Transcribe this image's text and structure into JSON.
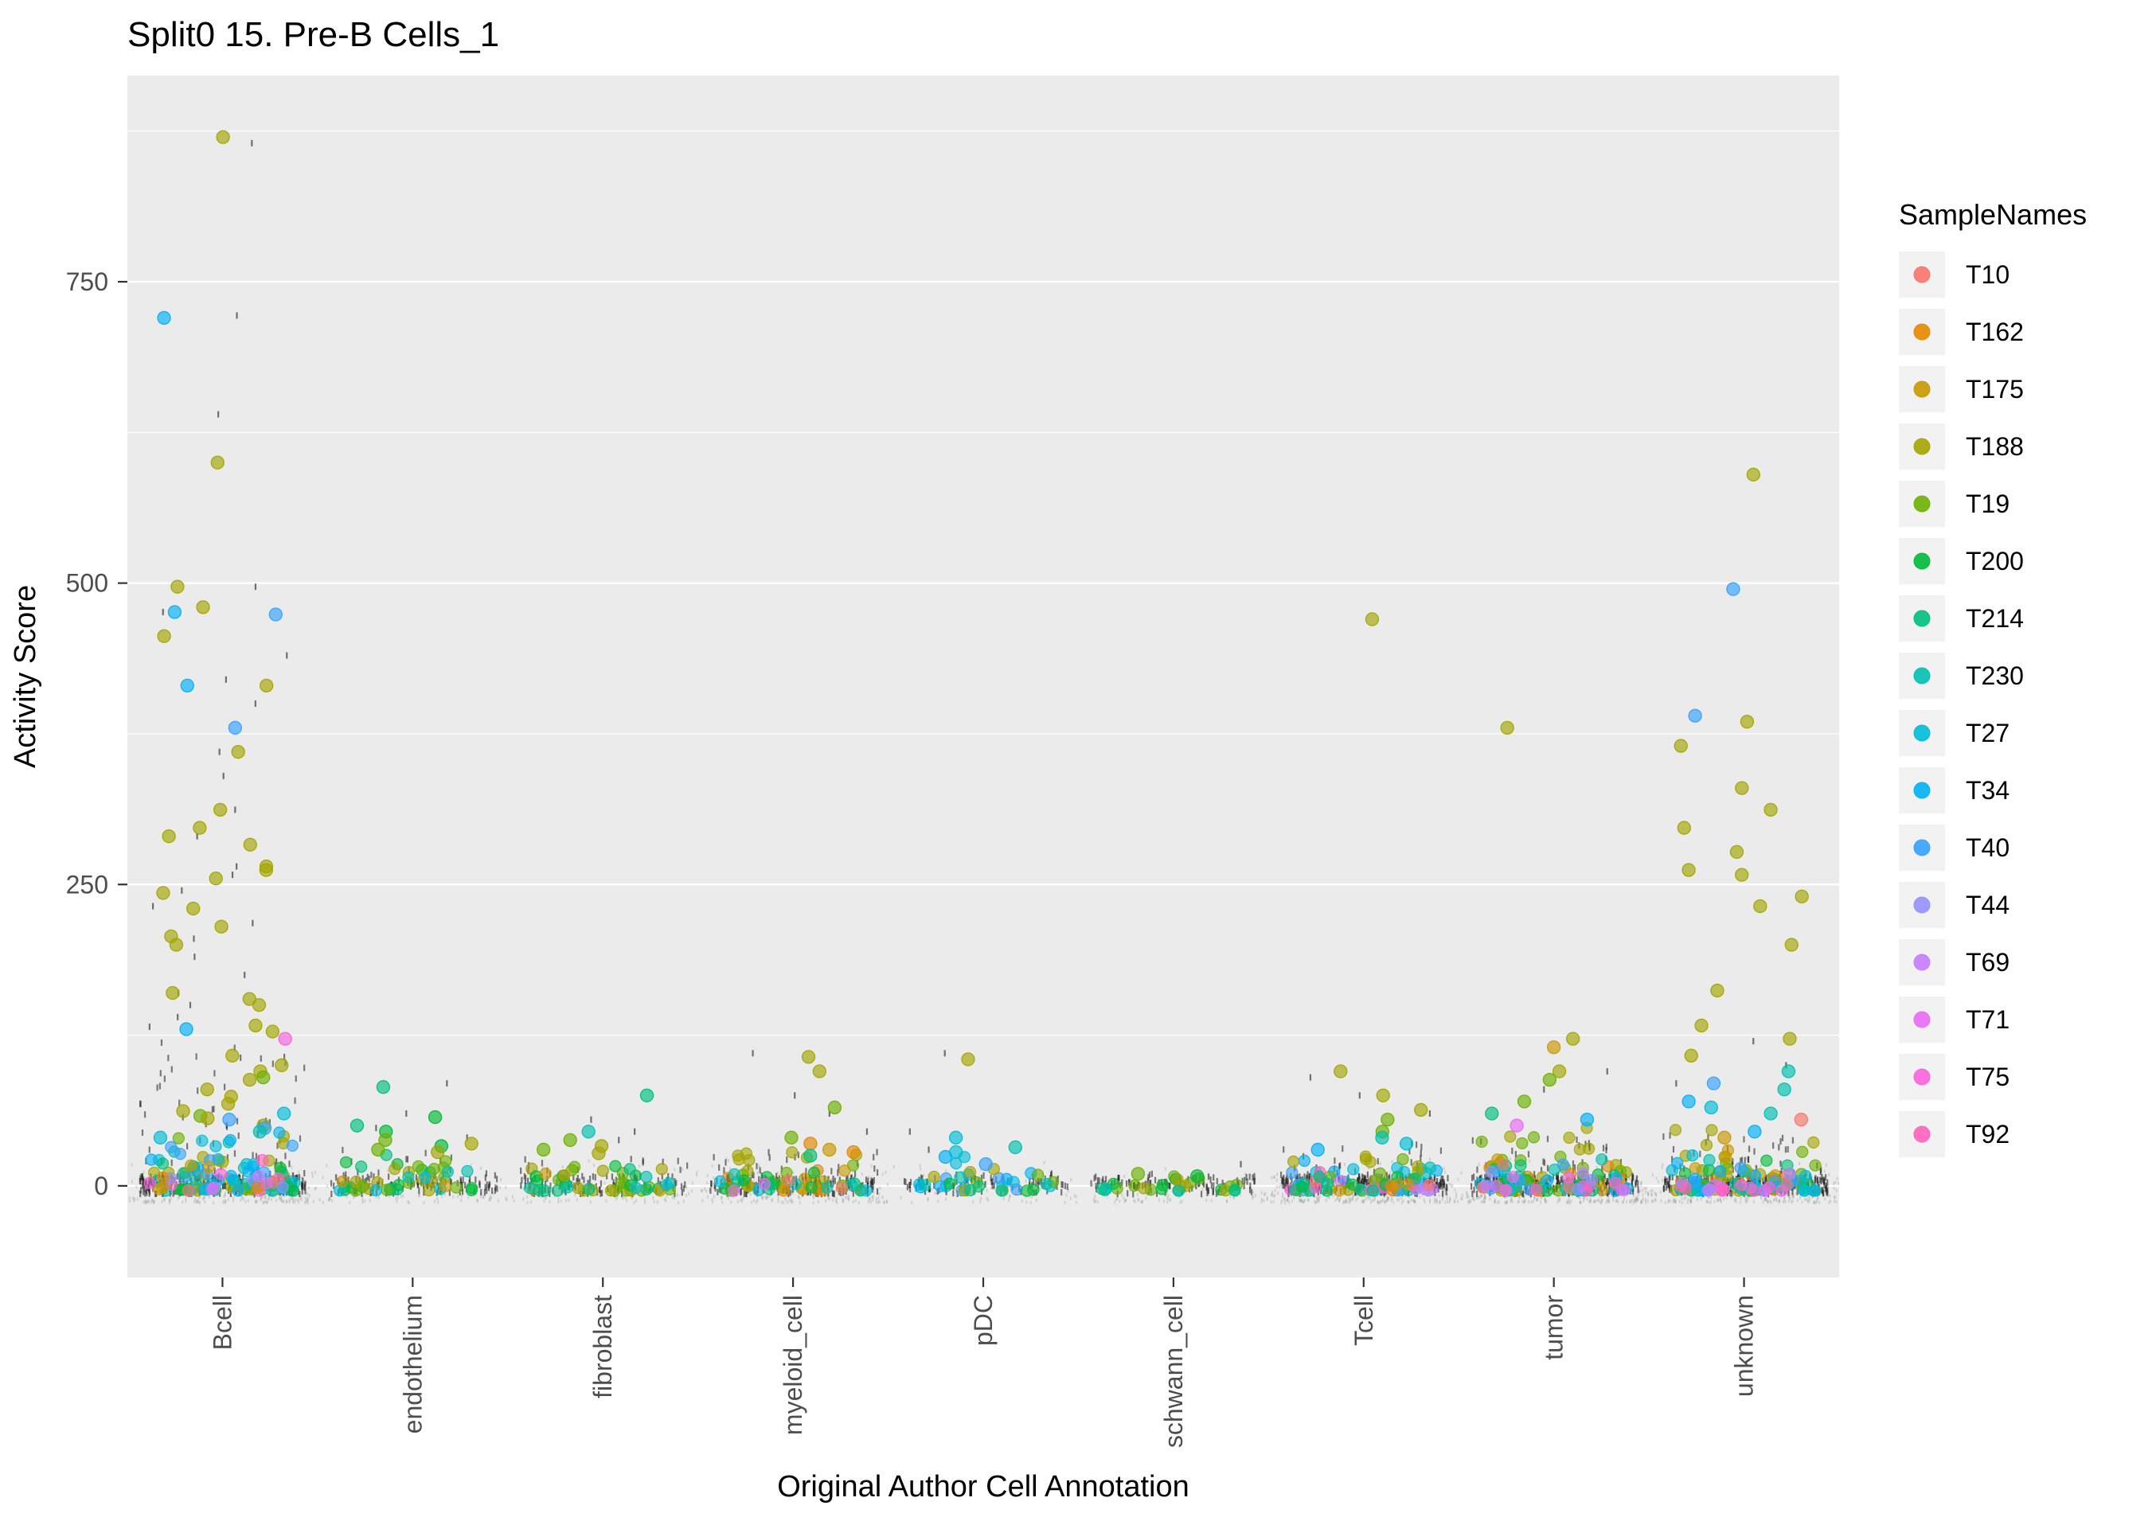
{
  "page": {
    "title": "Split0 15. Pre-B Cells_1"
  },
  "chart_data": {
    "type": "scatter",
    "variant": "jitter-strip",
    "title": "Split0 15. Pre-B Cells_1",
    "xlabel": "Original Author Cell Annotation",
    "ylabel": "Activity Score",
    "ylim": [
      -76,
      921
    ],
    "y_ticks": [
      0,
      250,
      500,
      750
    ],
    "y_minor_ticks": [
      125,
      375,
      625,
      875
    ],
    "grid": true,
    "panel_bg": "#EBEBEB",
    "grid_color": "#FFFFFF",
    "tick_color": "#333333",
    "categories": [
      "Bcell",
      "endothelium",
      "fibroblast",
      "myeloid_cell",
      "pDC",
      "schwann_cell",
      "Tcell",
      "tumor",
      "unknown"
    ],
    "legend": {
      "title": "SampleNames",
      "position": "right",
      "key_bg": "#F2F2F2",
      "entries": [
        {
          "label": "T10",
          "color": "#F8766D"
        },
        {
          "label": "T162",
          "color": "#E58700"
        },
        {
          "label": "T175",
          "color": "#C99800"
        },
        {
          "label": "T188",
          "color": "#A3A500"
        },
        {
          "label": "T19",
          "color": "#6BB100"
        },
        {
          "label": "T200",
          "color": "#00BA38"
        },
        {
          "label": "T214",
          "color": "#00BF7D"
        },
        {
          "label": "T230",
          "color": "#00C0AF"
        },
        {
          "label": "T27",
          "color": "#00BCD8"
        },
        {
          "label": "T34",
          "color": "#00B0F6"
        },
        {
          "label": "T40",
          "color": "#35A2FF"
        },
        {
          "label": "T44",
          "color": "#9590FF"
        },
        {
          "label": "T69",
          "color": "#C77CFF"
        },
        {
          "label": "T71",
          "color": "#E76BF3"
        },
        {
          "label": "T75",
          "color": "#FA62DB"
        },
        {
          "label": "T92",
          "color": "#FF62BC"
        }
      ]
    },
    "outliers": {
      "Bcell": [
        [
          "T188",
          870
        ],
        [
          "T34",
          720
        ],
        [
          "T188",
          600
        ],
        [
          "T188",
          497
        ],
        [
          "T188",
          480
        ],
        [
          "T34",
          476
        ],
        [
          "T40",
          474
        ],
        [
          "T188",
          456
        ],
        [
          "T34",
          415
        ],
        [
          "T188",
          415
        ],
        [
          "T40",
          380
        ],
        [
          "T188",
          360
        ],
        [
          "T188",
          312
        ],
        [
          "T188",
          297
        ],
        [
          "T188",
          290
        ],
        [
          "T188",
          283
        ],
        [
          "T188",
          265
        ],
        [
          "T188",
          262
        ],
        [
          "T188",
          255
        ],
        [
          "T188",
          243
        ],
        [
          "T188",
          230
        ],
        [
          "T188",
          215
        ],
        [
          "T188",
          207
        ],
        [
          "T188",
          200
        ],
        [
          "T188",
          160
        ],
        [
          "T188",
          155
        ],
        [
          "T188",
          150
        ],
        [
          "T188",
          133
        ],
        [
          "T34",
          130
        ],
        [
          "T188",
          128
        ],
        [
          "T75",
          122
        ],
        [
          "T188",
          108
        ],
        [
          "T188",
          100
        ],
        [
          "T188",
          95
        ],
        [
          "T19",
          90
        ],
        [
          "T188",
          88
        ],
        [
          "T188",
          80
        ],
        [
          "T188",
          74
        ],
        [
          "T188",
          68
        ],
        [
          "T188",
          62
        ],
        [
          "T27",
          60
        ],
        [
          "T19",
          58
        ],
        [
          "T188",
          56
        ],
        [
          "T40",
          55
        ],
        [
          "T188",
          50
        ],
        [
          "T40",
          48
        ],
        [
          "T230",
          45
        ],
        [
          "T27",
          40
        ]
      ],
      "endothelium": [
        [
          "T214",
          82
        ],
        [
          "T200",
          57
        ],
        [
          "T214",
          50
        ],
        [
          "T200",
          45
        ],
        [
          "T19",
          38
        ],
        [
          "T188",
          35
        ],
        [
          "T200",
          33
        ],
        [
          "T19",
          30
        ],
        [
          "T188",
          28
        ]
      ],
      "fibroblast": [
        [
          "T214",
          75
        ],
        [
          "T230",
          45
        ],
        [
          "T19",
          38
        ],
        [
          "T188",
          33
        ],
        [
          "T19",
          30
        ],
        [
          "T188",
          27
        ]
      ],
      "myeloid_cell": [
        [
          "T188",
          107
        ],
        [
          "T188",
          95
        ],
        [
          "T19",
          65
        ],
        [
          "T19",
          40
        ],
        [
          "T162",
          35
        ],
        [
          "T175",
          30
        ],
        [
          "T162",
          28
        ],
        [
          "T214",
          25
        ]
      ],
      "pDC": [
        [
          "T188",
          105
        ],
        [
          "T27",
          40
        ],
        [
          "T230",
          32
        ],
        [
          "T27",
          28
        ],
        [
          "T34",
          24
        ],
        [
          "T40",
          18
        ]
      ],
      "schwann_cell": [
        [
          "T19",
          10
        ],
        [
          "T200",
          8
        ]
      ],
      "Tcell": [
        [
          "T188",
          470
        ],
        [
          "T188",
          95
        ],
        [
          "T188",
          75
        ],
        [
          "T188",
          63
        ],
        [
          "T19",
          55
        ],
        [
          "T19",
          45
        ],
        [
          "T230",
          40
        ],
        [
          "T27",
          35
        ],
        [
          "T34",
          30
        ]
      ],
      "tumor": [
        [
          "T188",
          380
        ],
        [
          "T188",
          122
        ],
        [
          "T175",
          115
        ],
        [
          "T188",
          95
        ],
        [
          "T19",
          88
        ],
        [
          "T19",
          70
        ],
        [
          "T214",
          60
        ],
        [
          "T34",
          55
        ],
        [
          "T71",
          50
        ]
      ],
      "unknown": [
        [
          "T188",
          590
        ],
        [
          "T40",
          495
        ],
        [
          "T40",
          390
        ],
        [
          "T188",
          385
        ],
        [
          "T188",
          365
        ],
        [
          "T188",
          330
        ],
        [
          "T188",
          312
        ],
        [
          "T188",
          297
        ],
        [
          "T188",
          277
        ],
        [
          "T188",
          262
        ],
        [
          "T188",
          258
        ],
        [
          "T188",
          240
        ],
        [
          "T188",
          232
        ],
        [
          "T188",
          200
        ],
        [
          "T188",
          162
        ],
        [
          "T188",
          133
        ],
        [
          "T188",
          122
        ],
        [
          "T188",
          108
        ],
        [
          "T230",
          95
        ],
        [
          "T40",
          85
        ],
        [
          "T230",
          80
        ],
        [
          "T34",
          70
        ],
        [
          "T27",
          65
        ],
        [
          "T230",
          60
        ],
        [
          "T10",
          55
        ],
        [
          "T34",
          45
        ],
        [
          "T175",
          40
        ]
      ]
    },
    "clusters": {
      "Bcell": [
        [
          "T188",
          22,
          48
        ],
        [
          "T19",
          10,
          40
        ],
        [
          "T230",
          12,
          38
        ],
        [
          "T27",
          16,
          42
        ],
        [
          "T34",
          12,
          45
        ],
        [
          "T40",
          10,
          40
        ],
        [
          "T214",
          6,
          25
        ],
        [
          "T200",
          5,
          20
        ],
        [
          "T75",
          3,
          20
        ],
        [
          "T92",
          3,
          24
        ],
        [
          "T44",
          3,
          18
        ],
        [
          "T69",
          2,
          14
        ],
        [
          "T10",
          2,
          14
        ],
        [
          "T162",
          2,
          12
        ],
        [
          "T175",
          4,
          20
        ],
        [
          "T71",
          2,
          12
        ]
      ],
      "endothelium": [
        [
          "T214",
          8,
          28
        ],
        [
          "T200",
          8,
          24
        ],
        [
          "T19",
          10,
          26
        ],
        [
          "T188",
          8,
          28
        ],
        [
          "T230",
          4,
          14
        ],
        [
          "T27",
          3,
          10
        ],
        [
          "T175",
          2,
          8
        ]
      ],
      "fibroblast": [
        [
          "T19",
          12,
          24
        ],
        [
          "T188",
          10,
          22
        ],
        [
          "T200",
          8,
          18
        ],
        [
          "T214",
          6,
          14
        ],
        [
          "T230",
          4,
          12
        ],
        [
          "T175",
          3,
          10
        ],
        [
          "T27",
          2,
          8
        ]
      ],
      "myeloid_cell": [
        [
          "T188",
          12,
          28
        ],
        [
          "T19",
          10,
          24
        ],
        [
          "T162",
          5,
          20
        ],
        [
          "T175",
          6,
          18
        ],
        [
          "T200",
          6,
          14
        ],
        [
          "T214",
          5,
          14
        ],
        [
          "T230",
          4,
          12
        ],
        [
          "T27",
          3,
          10
        ],
        [
          "T10",
          2,
          8
        ],
        [
          "T71",
          2,
          8
        ]
      ],
      "pDC": [
        [
          "T27",
          8,
          24
        ],
        [
          "T34",
          5,
          16
        ],
        [
          "T40",
          4,
          12
        ],
        [
          "T188",
          4,
          14
        ],
        [
          "T19",
          4,
          10
        ],
        [
          "T230",
          4,
          12
        ],
        [
          "T200",
          3,
          8
        ],
        [
          "T214",
          2,
          6
        ]
      ],
      "schwann_cell": [
        [
          "T19",
          8,
          8
        ],
        [
          "T200",
          6,
          7
        ],
        [
          "T188",
          5,
          6
        ],
        [
          "T214",
          4,
          5
        ],
        [
          "T230",
          2,
          4
        ]
      ],
      "Tcell": [
        [
          "T27",
          10,
          24
        ],
        [
          "T34",
          8,
          24
        ],
        [
          "T40",
          8,
          22
        ],
        [
          "T188",
          10,
          30
        ],
        [
          "T19",
          8,
          24
        ],
        [
          "T230",
          8,
          20
        ],
        [
          "T44",
          4,
          14
        ],
        [
          "T69",
          3,
          12
        ],
        [
          "T75",
          3,
          12
        ],
        [
          "T92",
          3,
          14
        ],
        [
          "T10",
          2,
          10
        ],
        [
          "T214",
          5,
          14
        ],
        [
          "T200",
          4,
          12
        ],
        [
          "T162",
          2,
          8
        ],
        [
          "T175",
          3,
          12
        ]
      ],
      "tumor": [
        [
          "T188",
          18,
          50
        ],
        [
          "T19",
          14,
          45
        ],
        [
          "T175",
          8,
          34
        ],
        [
          "T162",
          6,
          28
        ],
        [
          "T200",
          8,
          30
        ],
        [
          "T214",
          8,
          28
        ],
        [
          "T230",
          6,
          24
        ],
        [
          "T27",
          6,
          24
        ],
        [
          "T34",
          6,
          28
        ],
        [
          "T40",
          5,
          24
        ],
        [
          "T10",
          4,
          20
        ],
        [
          "T71",
          4,
          24
        ],
        [
          "T75",
          3,
          18
        ],
        [
          "T92",
          3,
          18
        ],
        [
          "T44",
          3,
          14
        ],
        [
          "T69",
          3,
          14
        ]
      ],
      "unknown": [
        [
          "T188",
          18,
          50
        ],
        [
          "T19",
          12,
          40
        ],
        [
          "T175",
          8,
          34
        ],
        [
          "T162",
          5,
          24
        ],
        [
          "T200",
          6,
          24
        ],
        [
          "T214",
          6,
          24
        ],
        [
          "T230",
          8,
          30
        ],
        [
          "T27",
          8,
          30
        ],
        [
          "T34",
          8,
          34
        ],
        [
          "T40",
          6,
          30
        ],
        [
          "T10",
          4,
          20
        ],
        [
          "T44",
          3,
          14
        ],
        [
          "T69",
          3,
          14
        ],
        [
          "T71",
          3,
          18
        ],
        [
          "T75",
          3,
          18
        ],
        [
          "T92",
          3,
          18
        ]
      ]
    },
    "marks": {
      "Bcell": {
        "band": 360,
        "halo": 250,
        "dense_max": 120,
        "extra": [
          865,
          722,
          640,
          497,
          476,
          440,
          420,
          400,
          360,
          340,
          312,
          290,
          265,
          258,
          245,
          232,
          218,
          205,
          190,
          175,
          160,
          150,
          140,
          132
        ]
      },
      "endothelium": {
        "band": 150,
        "halo": 90,
        "dense_max": 30,
        "extra": [
          85,
          60,
          48,
          40
        ]
      },
      "fibroblast": {
        "band": 150,
        "halo": 90,
        "dense_max": 25,
        "extra": [
          55,
          45,
          38
        ]
      },
      "myeloid_cell": {
        "band": 240,
        "halo": 180,
        "dense_max": 28,
        "extra": [
          110,
          75,
          60,
          45
        ]
      },
      "pDC": {
        "band": 100,
        "halo": 70,
        "dense_max": 18,
        "extra": [
          110,
          45,
          30
        ]
      },
      "schwann_cell": {
        "band": 120,
        "halo": 80,
        "dense_max": 10,
        "extra": [
          18
        ]
      },
      "Tcell": {
        "band": 320,
        "halo": 280,
        "dense_max": 35,
        "extra": [
          90,
          75,
          60
        ]
      },
      "tumor": {
        "band": 340,
        "halo": 300,
        "dense_max": 40,
        "extra": [
          95,
          80
        ]
      },
      "unknown": {
        "band": 340,
        "halo": 300,
        "dense_max": 45,
        "extra": [
          120,
          100,
          85
        ]
      }
    }
  }
}
